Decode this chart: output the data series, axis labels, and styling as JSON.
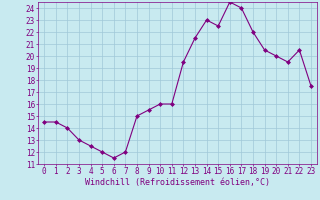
{
  "hours": [
    0,
    1,
    2,
    3,
    4,
    5,
    6,
    7,
    8,
    9,
    10,
    11,
    12,
    13,
    14,
    15,
    16,
    17,
    18,
    19,
    20,
    21,
    22,
    23
  ],
  "values": [
    14.5,
    14.5,
    14.0,
    13.0,
    12.5,
    12.0,
    11.5,
    12.0,
    15.0,
    15.5,
    16.0,
    16.0,
    19.5,
    21.5,
    23.0,
    22.5,
    24.5,
    24.0,
    22.0,
    20.5,
    20.0,
    19.5,
    20.5,
    17.5
  ],
  "line_color": "#800080",
  "marker_color": "#800080",
  "bg_color": "#c8eaf0",
  "grid_color": "#a0c8d8",
  "xlabel": "Windchill (Refroidissement éolien,°C)",
  "xlim": [
    -0.5,
    23.5
  ],
  "ylim": [
    11,
    24.5
  ],
  "yticks": [
    11,
    12,
    13,
    14,
    15,
    16,
    17,
    18,
    19,
    20,
    21,
    22,
    23,
    24
  ],
  "xticks": [
    0,
    1,
    2,
    3,
    4,
    5,
    6,
    7,
    8,
    9,
    10,
    11,
    12,
    13,
    14,
    15,
    16,
    17,
    18,
    19,
    20,
    21,
    22,
    23
  ],
  "font_color": "#800080",
  "tick_fontsize": 5.5,
  "xlabel_fontsize": 6.0,
  "linewidth": 0.8,
  "markersize": 2.0
}
